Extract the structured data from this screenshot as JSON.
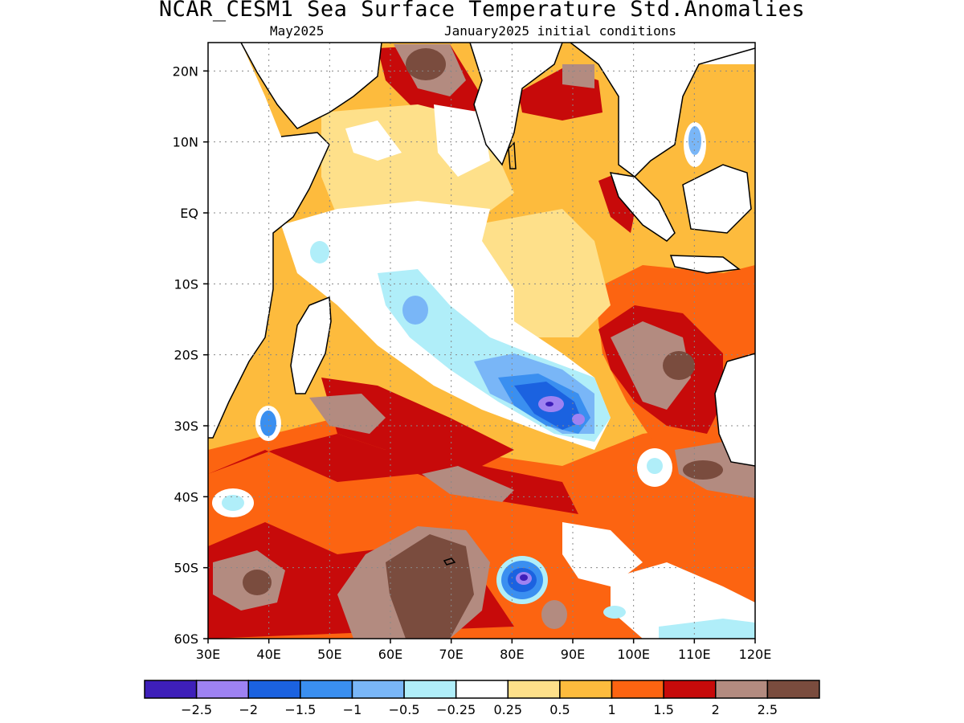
{
  "title": "NCAR_CESM1 Sea Surface Temperature Std.Anomalies",
  "subtitle_left": "May2025",
  "subtitle_right": "January2025 initial conditions",
  "map": {
    "lon_range": [
      30,
      120
    ],
    "lat_range": [
      -60,
      24
    ],
    "grid": "dotted",
    "lat_ticks": [
      {
        "value": 20,
        "label": "20N"
      },
      {
        "value": 10,
        "label": "10N"
      },
      {
        "value": 0,
        "label": "EQ"
      },
      {
        "value": -10,
        "label": "10S"
      },
      {
        "value": -20,
        "label": "20S"
      },
      {
        "value": -30,
        "label": "30S"
      },
      {
        "value": -40,
        "label": "40S"
      },
      {
        "value": -50,
        "label": "50S"
      },
      {
        "value": -60,
        "label": "60S"
      }
    ],
    "lon_ticks": [
      {
        "value": 30,
        "label": "30E"
      },
      {
        "value": 40,
        "label": "40E"
      },
      {
        "value": 50,
        "label": "50E"
      },
      {
        "value": 60,
        "label": "60E"
      },
      {
        "value": 70,
        "label": "70E"
      },
      {
        "value": 80,
        "label": "80E"
      },
      {
        "value": 90,
        "label": "90E"
      },
      {
        "value": 100,
        "label": "100E"
      },
      {
        "value": 110,
        "label": "110E"
      },
      {
        "value": 120,
        "label": "120E"
      }
    ]
  },
  "colorbar": {
    "colors": [
      "#3e1fb9",
      "#9e82f2",
      "#1b62e0",
      "#3a8ff0",
      "#79b6f7",
      "#b0eef9",
      "#ffffff",
      "#fee08a",
      "#fdbb3d",
      "#fc6411",
      "#c70a0a",
      "#b38b80",
      "#7a4c3e"
    ],
    "labels": [
      "−2.5",
      "−2",
      "−1.5",
      "−1",
      "−0.5",
      "−0.25",
      "0.25",
      "0.5",
      "1",
      "1.5",
      "2",
      "2.5"
    ]
  }
}
